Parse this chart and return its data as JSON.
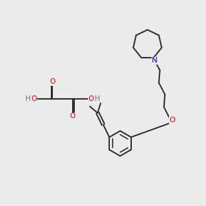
{
  "background_color": "#ebebeb",
  "bond_color": "#2a2a2a",
  "N_color": "#0000ee",
  "O_color": "#dd0000",
  "H_color": "#4a8080",
  "line_width": 1.4,
  "figsize": [
    3.0,
    3.0
  ],
  "dpi": 100,
  "xlim": [
    0,
    10
  ],
  "ylim": [
    0,
    10
  ]
}
